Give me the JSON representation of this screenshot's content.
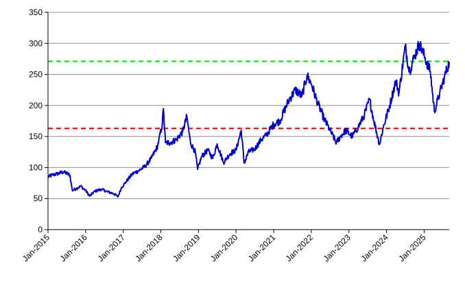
{
  "chart_data": {
    "type": "line",
    "title": "",
    "xlabel": "",
    "ylabel": "",
    "grid": "horizontal",
    "legend": "none",
    "xlim": [
      "2015-01-01",
      "2025-09-01"
    ],
    "ylim": [
      0,
      350
    ],
    "yticks": [
      0,
      50,
      100,
      150,
      200,
      250,
      300,
      350
    ],
    "xticks": [
      "Jan-2015",
      "Jan-2016",
      "Jan-2017",
      "Jan-2018",
      "Jan-2019",
      "Jan-2020",
      "Jan-2021",
      "Jan-2022",
      "Jan-2023",
      "Jan-2024",
      "Jan-2025"
    ],
    "series": [
      {
        "color": "#0000cc",
        "points": [
          [
            "2015-01-01",
            85
          ],
          [
            "2015-02-15",
            88
          ],
          [
            "2015-04-01",
            90
          ],
          [
            "2015-06-01",
            93
          ],
          [
            "2015-08-01",
            88
          ],
          [
            "2015-08-25",
            63
          ],
          [
            "2015-10-01",
            66
          ],
          [
            "2015-11-15",
            70
          ],
          [
            "2016-01-01",
            63
          ],
          [
            "2016-02-10",
            54
          ],
          [
            "2016-04-01",
            62
          ],
          [
            "2016-06-01",
            65
          ],
          [
            "2016-08-01",
            61
          ],
          [
            "2016-10-01",
            58
          ],
          [
            "2016-11-10",
            53
          ],
          [
            "2016-12-15",
            68
          ],
          [
            "2017-02-01",
            78
          ],
          [
            "2017-04-01",
            90
          ],
          [
            "2017-06-01",
            95
          ],
          [
            "2017-08-01",
            102
          ],
          [
            "2017-10-01",
            115
          ],
          [
            "2017-12-01",
            135
          ],
          [
            "2018-01-15",
            170
          ],
          [
            "2018-01-25",
            195
          ],
          [
            "2018-02-15",
            140
          ],
          [
            "2018-04-01",
            140
          ],
          [
            "2018-06-01",
            145
          ],
          [
            "2018-08-01",
            158
          ],
          [
            "2018-09-10",
            182
          ],
          [
            "2018-10-15",
            140
          ],
          [
            "2018-12-01",
            125
          ],
          [
            "2018-12-24",
            97
          ],
          [
            "2019-02-01",
            118
          ],
          [
            "2019-04-01",
            128
          ],
          [
            "2019-05-20",
            115
          ],
          [
            "2019-07-01",
            138
          ],
          [
            "2019-09-01",
            108
          ],
          [
            "2019-11-01",
            122
          ],
          [
            "2020-01-01",
            128
          ],
          [
            "2020-02-20",
            160
          ],
          [
            "2020-03-20",
            107
          ],
          [
            "2020-05-01",
            125
          ],
          [
            "2020-07-01",
            130
          ],
          [
            "2020-09-01",
            145
          ],
          [
            "2020-10-20",
            152
          ],
          [
            "2021-01-01",
            170
          ],
          [
            "2021-03-01",
            175
          ],
          [
            "2021-06-01",
            210
          ],
          [
            "2021-08-01",
            225
          ],
          [
            "2021-10-01",
            215
          ],
          [
            "2021-11-20",
            248
          ],
          [
            "2022-01-01",
            235
          ],
          [
            "2022-03-01",
            205
          ],
          [
            "2022-05-01",
            180
          ],
          [
            "2022-07-01",
            160
          ],
          [
            "2022-09-01",
            140
          ],
          [
            "2022-10-20",
            152
          ],
          [
            "2022-12-01",
            160
          ],
          [
            "2023-02-01",
            150
          ],
          [
            "2023-04-01",
            165
          ],
          [
            "2023-06-01",
            185
          ],
          [
            "2023-07-20",
            210
          ],
          [
            "2023-09-01",
            175
          ],
          [
            "2023-10-25",
            137
          ],
          [
            "2023-12-01",
            165
          ],
          [
            "2024-02-01",
            200
          ],
          [
            "2024-04-01",
            240
          ],
          [
            "2024-05-01",
            220
          ],
          [
            "2024-07-01",
            295
          ],
          [
            "2024-08-10",
            255
          ],
          [
            "2024-10-01",
            280
          ],
          [
            "2024-11-15",
            300
          ],
          [
            "2025-01-01",
            280
          ],
          [
            "2025-03-01",
            255
          ],
          [
            "2025-04-10",
            190
          ],
          [
            "2025-06-01",
            220
          ],
          [
            "2025-07-15",
            245
          ],
          [
            "2025-09-01",
            270
          ]
        ]
      }
    ],
    "reference_lines": [
      {
        "y": 271,
        "color": "#00dd00",
        "style": "dashed"
      },
      {
        "y": 163,
        "color": "#cc0000",
        "style": "dashed"
      }
    ]
  }
}
